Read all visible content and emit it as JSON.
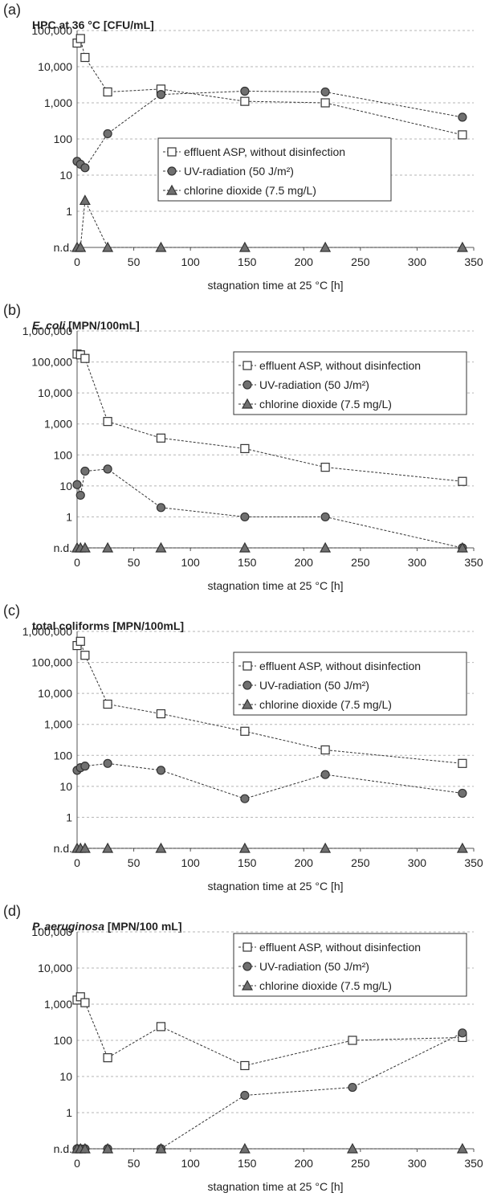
{
  "chart_data": [
    {
      "type": "line",
      "panel_label": "(a)",
      "title": "HPC at 36 °C [CFU/mL]",
      "title_italic": "",
      "xlabel": "stagnation time at 25 °C [h]",
      "xlim": [
        0,
        350
      ],
      "xticks": [
        "0",
        "50",
        "100",
        "150",
        "200",
        "250",
        "300",
        "350"
      ],
      "yscale": "log",
      "yticks": [
        "n.d.",
        "1",
        "10",
        "100",
        "1,000",
        "10,000",
        "100,000"
      ],
      "ylim_exponents": [
        -1,
        5
      ],
      "nd_value": "n.d.",
      "legend": {
        "placement": "center"
      },
      "series": [
        {
          "name": "effluent ASP, without disinfection",
          "marker": "square",
          "color": "#ffffff",
          "x": [
            0,
            3,
            7,
            27,
            74,
            148,
            219,
            340
          ],
          "y": [
            45000,
            60000,
            18000,
            2000,
            2400,
            1100,
            1000,
            130
          ]
        },
        {
          "name": "UV-radiation (50 J/m²)",
          "marker": "circle",
          "color": "#707070",
          "x": [
            0,
            3,
            7,
            27,
            74,
            148,
            219,
            340
          ],
          "y": [
            24,
            20,
            16,
            140,
            1700,
            2100,
            2000,
            400
          ]
        },
        {
          "name": "chlorine dioxide (7.5 mg/L)",
          "marker": "triangle",
          "color": "#707070",
          "x": [
            0,
            3,
            7,
            27,
            74,
            148,
            219,
            340
          ],
          "y": [
            "n.d.",
            "n.d.",
            2,
            "n.d.",
            "n.d.",
            "n.d.",
            "n.d.",
            "n.d."
          ]
        }
      ]
    },
    {
      "type": "line",
      "panel_label": "(b)",
      "title": "[MPN/100mL]",
      "title_italic": "E. coli",
      "xlabel": "stagnation time at 25 °C [h]",
      "xlim": [
        0,
        350
      ],
      "xticks": [
        "0",
        "50",
        "100",
        "150",
        "200",
        "250",
        "300",
        "350"
      ],
      "yscale": "log",
      "yticks": [
        "n.d.",
        "1",
        "10",
        "100",
        "1,000",
        "10,000",
        "100,000",
        "1,000,000"
      ],
      "ylim_exponents": [
        -1,
        6
      ],
      "nd_value": "n.d.",
      "legend": {
        "placement": "top-right"
      },
      "series": [
        {
          "name": "effluent ASP, without disinfection",
          "marker": "square",
          "color": "#ffffff",
          "x": [
            0,
            3,
            7,
            27,
            74,
            148,
            219,
            340
          ],
          "y": [
            180000,
            170000,
            130000,
            1200,
            350,
            160,
            40,
            14
          ]
        },
        {
          "name": "UV-radiation (50 J/m²)",
          "marker": "circle",
          "color": "#707070",
          "x": [
            0,
            3,
            7,
            27,
            74,
            148,
            219,
            340
          ],
          "y": [
            11,
            5,
            30,
            35,
            2,
            1,
            1,
            "n.d."
          ]
        },
        {
          "name": "chlorine dioxide (7.5 mg/L)",
          "marker": "triangle",
          "color": "#707070",
          "x": [
            0,
            3,
            7,
            27,
            74,
            148,
            219,
            340
          ],
          "y": [
            "n.d.",
            "n.d.",
            "n.d.",
            "n.d.",
            "n.d.",
            "n.d.",
            "n.d.",
            "n.d."
          ]
        }
      ]
    },
    {
      "type": "line",
      "panel_label": "(c)",
      "title": "total coliforms [MPN/100mL]",
      "title_italic": "",
      "xlabel": "stagnation time at 25 °C [h]",
      "xlim": [
        0,
        350
      ],
      "xticks": [
        "0",
        "50",
        "100",
        "150",
        "200",
        "250",
        "300",
        "350"
      ],
      "yscale": "log",
      "yticks": [
        "n.d.",
        "1",
        "10",
        "100",
        "1,000",
        "10,000",
        "100,000",
        "1,000,000"
      ],
      "ylim_exponents": [
        -1,
        6
      ],
      "nd_value": "n.d.",
      "legend": {
        "placement": "top-right"
      },
      "series": [
        {
          "name": "effluent ASP, without disinfection",
          "marker": "square",
          "color": "#ffffff",
          "x": [
            0,
            3,
            7,
            27,
            74,
            148,
            219,
            340
          ],
          "y": [
            350000,
            480000,
            170000,
            4500,
            2200,
            600,
            150,
            55
          ]
        },
        {
          "name": "UV-radiation (50 J/m²)",
          "marker": "circle",
          "color": "#707070",
          "x": [
            0,
            3,
            7,
            27,
            74,
            148,
            219,
            340
          ],
          "y": [
            33,
            40,
            45,
            55,
            33,
            4,
            24,
            6
          ]
        },
        {
          "name": "chlorine dioxide (7.5 mg/L)",
          "marker": "triangle",
          "color": "#707070",
          "x": [
            0,
            3,
            7,
            27,
            74,
            148,
            219,
            340
          ],
          "y": [
            "n.d.",
            "n.d.",
            "n.d.",
            "n.d.",
            "n.d.",
            "n.d.",
            "n.d.",
            "n.d."
          ]
        }
      ]
    },
    {
      "type": "line",
      "panel_label": "(d)",
      "title": "[MPN/100 mL]",
      "title_italic": "P. aeruginosa",
      "xlabel": "stagnation time at 25 °C [h]",
      "xlim": [
        0,
        350
      ],
      "xticks": [
        "0",
        "50",
        "100",
        "150",
        "200",
        "250",
        "300",
        "350"
      ],
      "yscale": "log",
      "yticks": [
        "n.d.",
        "1",
        "10",
        "100",
        "1,000",
        "10,000",
        "100,000"
      ],
      "ylim_exponents": [
        -1,
        5
      ],
      "nd_value": "n.d.",
      "legend": {
        "placement": "top-right"
      },
      "series": [
        {
          "name": "effluent ASP, without disinfection",
          "marker": "square",
          "color": "#ffffff",
          "x": [
            0,
            3,
            7,
            27,
            74,
            148,
            243,
            340
          ],
          "y": [
            1300,
            1600,
            1100,
            33,
            240,
            20,
            100,
            120
          ]
        },
        {
          "name": "UV-radiation (50 J/m²)",
          "marker": "circle",
          "color": "#707070",
          "x": [
            0,
            3,
            7,
            27,
            74,
            148,
            243,
            340
          ],
          "y": [
            "n.d.",
            "n.d.",
            "n.d.",
            "n.d.",
            "n.d.",
            3,
            5,
            160
          ]
        },
        {
          "name": "chlorine dioxide (7.5 mg/L)",
          "marker": "triangle",
          "color": "#707070",
          "x": [
            0,
            3,
            7,
            27,
            74,
            148,
            243,
            340
          ],
          "y": [
            "n.d.",
            "n.d.",
            "n.d.",
            "n.d.",
            "n.d.",
            "n.d.",
            "n.d.",
            "n.d."
          ]
        }
      ]
    }
  ]
}
